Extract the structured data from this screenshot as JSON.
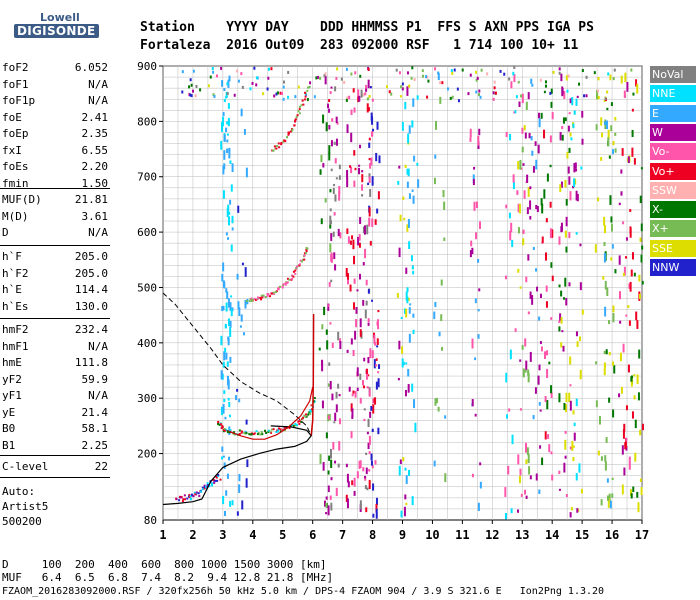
{
  "logo": {
    "line1": "Lowell",
    "line2": "DIGISONDE"
  },
  "header": {
    "row1": "Station    YYYY DAY    DDD HHMMSS P1  FFS S AXN PPS IGA PS",
    "row2": "Fortaleza  2016 Out09  283 092000 RSF   1 714 100 10+ 11"
  },
  "params_group1": [
    {
      "k": "foF2",
      "v": "6.052"
    },
    {
      "k": "foF1",
      "v": "N/A"
    },
    {
      "k": "foF1p",
      "v": "N/A"
    },
    {
      "k": "foE",
      "v": "2.41"
    },
    {
      "k": "foEp",
      "v": "2.35"
    },
    {
      "k": "fxI",
      "v": "6.55"
    },
    {
      "k": "foEs",
      "v": "2.20"
    },
    {
      "k": "fmin",
      "v": "1.50"
    }
  ],
  "params_group2": [
    {
      "k": "MUF(D)",
      "v": "21.81"
    },
    {
      "k": "M(D)",
      "v": "3.61"
    },
    {
      "k": "D",
      "v": "N/A"
    }
  ],
  "params_group3": [
    {
      "k": "h`F",
      "v": "205.0"
    },
    {
      "k": "h`F2",
      "v": "205.0"
    },
    {
      "k": "h`E",
      "v": "114.4"
    },
    {
      "k": "h`Es",
      "v": "130.0"
    }
  ],
  "params_group4": [
    {
      "k": "hmF2",
      "v": "232.4"
    },
    {
      "k": "hmF1",
      "v": "N/A"
    },
    {
      "k": "hmE",
      "v": "111.8"
    },
    {
      "k": "yF2",
      "v": "59.9"
    },
    {
      "k": "yF1",
      "v": "N/A"
    },
    {
      "k": "yE",
      "v": "21.4"
    },
    {
      "k": "B0",
      "v": "58.1"
    },
    {
      "k": "B1",
      "v": "2.25"
    }
  ],
  "params_group5": [
    {
      "k": "C-level",
      "v": "22"
    }
  ],
  "auto": {
    "line1": "Auto:",
    "line2": "Artist5",
    "line3": "500200"
  },
  "legend": [
    {
      "label": "NoVal",
      "color": "#808080"
    },
    {
      "label": "NNE",
      "color": "#00e0ff"
    },
    {
      "label": "E",
      "color": "#33aaff"
    },
    {
      "label": "W",
      "color": "#aa0099"
    },
    {
      "label": "Vo-",
      "color": "#ff55aa"
    },
    {
      "label": "Vo+",
      "color": "#ee0022"
    },
    {
      "label": "SSW",
      "color": "#ffb0b0"
    },
    {
      "label": "X-",
      "color": "#007700"
    },
    {
      "label": "X+",
      "color": "#77bb55"
    },
    {
      "label": "SSE",
      "color": "#dddd00"
    },
    {
      "label": "NNW",
      "color": "#2222cc"
    }
  ],
  "footer": {
    "d_row": "D     100  200  400  600  800 1000 1500 3000 [km]",
    "muf_row": "MUF   6.4  6.5  6.8  7.4  8.2  9.4 12.8 21.8 [MHz]",
    "file_row": "FZAOM_2016283092000.RSF / 320fx256h 50 kHz 5.0 km / DPS-4 FZAOM 904 / 3.9 S 321.6 E   Ion2Png 1.3.20"
  },
  "chart_data": {
    "type": "scatter",
    "xlim": [
      1,
      17
    ],
    "ylim": [
      80,
      900
    ],
    "x_ticks": [
      1,
      2,
      3,
      4,
      5,
      6,
      7,
      8,
      9,
      10,
      11,
      12,
      13,
      14,
      15,
      16,
      17
    ],
    "y_ticks": [
      200,
      300,
      400,
      500,
      600,
      700,
      800,
      900
    ],
    "y_tick_labels": [
      "200",
      "300",
      "400",
      "500",
      "600",
      "700",
      "800",
      "900"
    ],
    "y_bottom_label": "80",
    "x_tick_labels": [
      "1",
      "2",
      "3",
      "4",
      "5",
      "6",
      "7",
      "8",
      "9",
      "10",
      "11",
      "12",
      "13",
      "14",
      "15",
      "16",
      "17"
    ],
    "grid": true,
    "traces": {
      "f_layer": [
        [
          2.8,
          258
        ],
        [
          3.0,
          245
        ],
        [
          3.3,
          240
        ],
        [
          3.8,
          239
        ],
        [
          4.3,
          240
        ],
        [
          4.8,
          243
        ],
        [
          5.2,
          250
        ],
        [
          5.6,
          262
        ],
        [
          5.9,
          278
        ],
        [
          6.05,
          300
        ]
      ],
      "f_echo2": [
        [
          3.8,
          478
        ],
        [
          4.2,
          482
        ],
        [
          4.6,
          490
        ],
        [
          5.0,
          505
        ],
        [
          5.3,
          522
        ],
        [
          5.6,
          548
        ],
        [
          5.8,
          575
        ]
      ],
      "f_echo3": [
        [
          4.6,
          748
        ],
        [
          5.0,
          765
        ],
        [
          5.3,
          790
        ],
        [
          5.6,
          830
        ],
        [
          5.85,
          870
        ]
      ],
      "e_layer": [
        [
          1.4,
          118
        ],
        [
          1.8,
          122
        ],
        [
          2.1,
          128
        ],
        [
          2.4,
          140
        ],
        [
          2.6,
          150
        ],
        [
          2.9,
          160
        ]
      ],
      "profile": [
        [
          1.0,
          108
        ],
        [
          1.5,
          110
        ],
        [
          2.0,
          113
        ],
        [
          2.3,
          118
        ],
        [
          2.6,
          150
        ],
        [
          3.0,
          175
        ],
        [
          3.6,
          190
        ],
        [
          4.2,
          200
        ],
        [
          4.8,
          208
        ],
        [
          5.4,
          213
        ],
        [
          5.8,
          222
        ],
        [
          5.95,
          232
        ],
        [
          5.8,
          242
        ],
        [
          5.3,
          248
        ],
        [
          4.6,
          250
        ]
      ],
      "profile_top": [
        [
          5.95,
          232
        ],
        [
          6.0,
          260
        ],
        [
          6.02,
          330
        ],
        [
          6.03,
          452
        ]
      ],
      "dashed_profile": [
        [
          1.0,
          490
        ],
        [
          1.4,
          470
        ],
        [
          2.0,
          430
        ],
        [
          2.6,
          390
        ],
        [
          3.0,
          360
        ],
        [
          3.6,
          330
        ],
        [
          4.2,
          310
        ],
        [
          4.8,
          295
        ],
        [
          5.4,
          270
        ],
        [
          5.8,
          250
        ],
        [
          5.95,
          232
        ]
      ],
      "red_profile": [
        [
          3.2,
          240
        ],
        [
          3.6,
          232
        ],
        [
          4.0,
          226
        ],
        [
          4.4,
          226
        ],
        [
          4.8,
          234
        ],
        [
          5.2,
          248
        ],
        [
          5.6,
          268
        ],
        [
          5.9,
          295
        ],
        [
          6.0,
          320
        ]
      ]
    }
  }
}
